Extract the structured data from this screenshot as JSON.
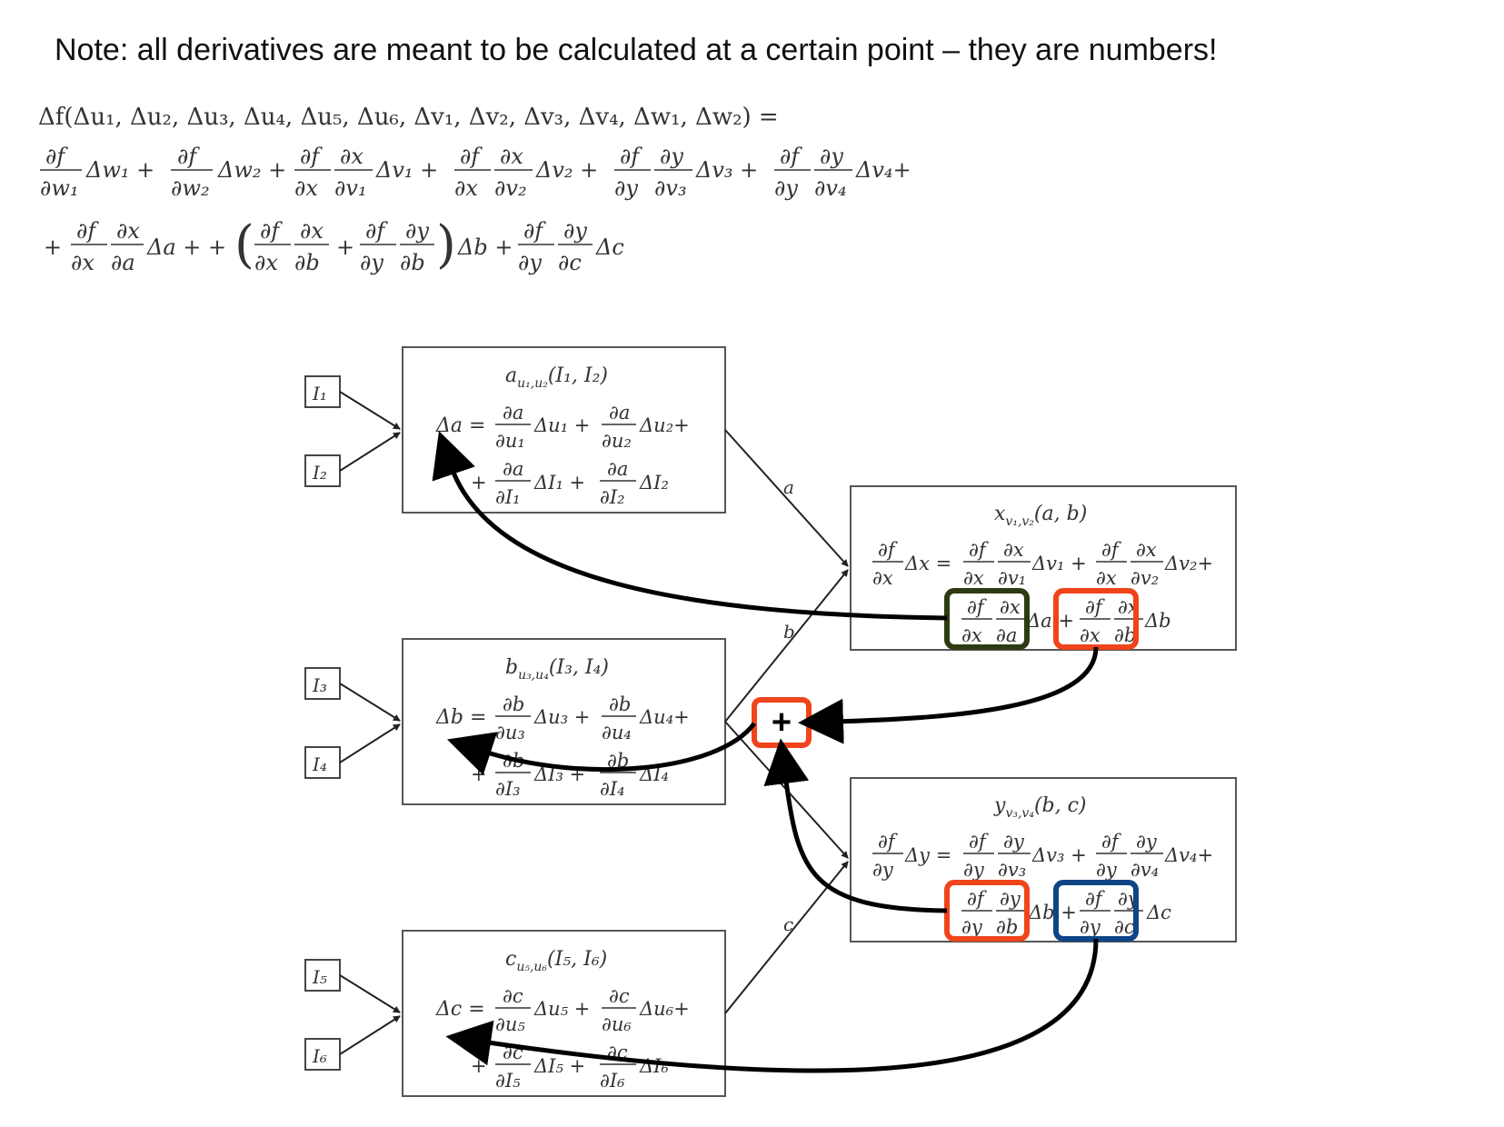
{
  "note": "Note: all derivatives are meant to be calculated at a certain point – they are numbers!",
  "colors": {
    "green_box": "#2e3b12",
    "orange_box": "#f0441a",
    "blue_box": "#0f4587",
    "plus_box": "#f0441a",
    "arrow": "#000000"
  },
  "equation": {
    "line1": "Δf(Δu₁, Δu₂, Δu₃, Δu₄, Δu₅, Δu₆, Δv₁, Δv₂, Δv₃, Δv₄, Δw₁, Δw₂) ="
  },
  "inputs": [
    "I₁",
    "I₂",
    "I₃",
    "I₄",
    "I₅",
    "I₆"
  ],
  "nodes": {
    "a": {
      "title": "a",
      "title_sub": "u₁,u₂",
      "title_args": "(I₁, I₂)",
      "lhs": "Δa =",
      "var": "a",
      "params": [
        "u₁",
        "u₂"
      ],
      "inputs": [
        "I₁",
        "I₂"
      ]
    },
    "b": {
      "title": "b",
      "title_sub": "u₃,u₄",
      "title_args": "(I₃, I₄)",
      "lhs": "Δb =",
      "var": "b",
      "params": [
        "u₃",
        "u₄"
      ],
      "inputs": [
        "I₃",
        "I₄"
      ]
    },
    "c": {
      "title": "c",
      "title_sub": "u₅,u₆",
      "title_args": "(I₅, I₆)",
      "lhs": "Δc =",
      "var": "c",
      "params": [
        "u₅",
        "u₆"
      ],
      "inputs": [
        "I₅",
        "I₆"
      ]
    },
    "x": {
      "title": "x",
      "title_sub": "v₁,v₂",
      "title_args": "(a, b)"
    },
    "y": {
      "title": "y",
      "title_sub": "v₃,v₄",
      "title_args": "(b, c)"
    }
  },
  "edge_labels": {
    "a": "a",
    "b": "b",
    "c": "c"
  },
  "plus_symbol": "+"
}
